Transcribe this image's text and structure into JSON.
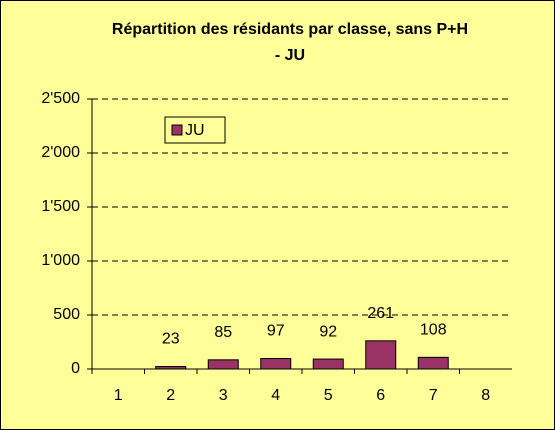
{
  "chart_data": {
    "type": "bar",
    "title": [
      "Répartition des résidants par classe, sans P+H",
      "- JU"
    ],
    "categories": [
      "1",
      "2",
      "3",
      "4",
      "5",
      "6",
      "7",
      "8"
    ],
    "series": [
      {
        "name": "JU",
        "color": "#993366",
        "values": [
          null,
          23,
          85,
          97,
          92,
          261,
          108,
          null
        ]
      }
    ],
    "ylim": [
      0,
      2500
    ],
    "yticks": [
      0,
      500,
      {
        "value": 1000,
        "label": "1'000"
      },
      {
        "value": 1500,
        "label": "1'500"
      },
      {
        "value": 2000,
        "label": "2'000"
      },
      {
        "value": 2500,
        "label": "2'500"
      }
    ],
    "grid": true,
    "legend": "top-left"
  }
}
